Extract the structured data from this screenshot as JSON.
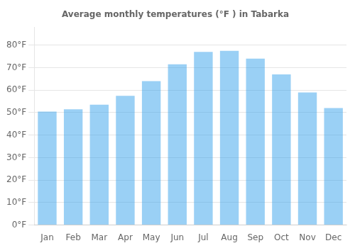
{
  "chart_data": {
    "type": "bar",
    "title": "Average monthly temperatures (°F ) in Tabarka",
    "categories": [
      "Jan",
      "Feb",
      "Mar",
      "Apr",
      "May",
      "Jun",
      "Jul",
      "Aug",
      "Sep",
      "Oct",
      "Nov",
      "Dec"
    ],
    "values": [
      50.5,
      51.5,
      53.5,
      57.5,
      64,
      71.5,
      77,
      77.5,
      74,
      67,
      59,
      52
    ],
    "ylim": [
      0,
      88
    ],
    "yticks": [
      {
        "value": 0,
        "label": "0°F"
      },
      {
        "value": 10,
        "label": "10°F"
      },
      {
        "value": 20,
        "label": "20°F"
      },
      {
        "value": 30,
        "label": "30°F"
      },
      {
        "value": 40,
        "label": "40°F"
      },
      {
        "value": 50,
        "label": "50°F"
      },
      {
        "value": 60,
        "label": "60°F"
      },
      {
        "value": 70,
        "label": "70°F"
      },
      {
        "value": 80,
        "label": "80°F"
      }
    ],
    "grid": true
  }
}
